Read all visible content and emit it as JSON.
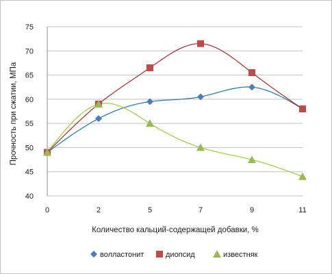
{
  "chart_data": {
    "type": "scatter",
    "xlabel": "Количество кальций-содержащей добавки, %",
    "ylabel": "Прочность при сжатии, МПа",
    "x_categories": [
      "0",
      "2",
      "5",
      "7",
      "9",
      "11"
    ],
    "ylim": [
      40,
      75
    ],
    "y_ticks": [
      40,
      45,
      50,
      55,
      60,
      65,
      70,
      75
    ],
    "grid": "horizontal",
    "legend_position": "bottom",
    "trendlines": "polynomial",
    "series": [
      {
        "name": "волластонит",
        "marker": "diamond",
        "color": "#4a7ebb",
        "curve_color": "#1f77a4",
        "values": [
          49,
          56,
          59.5,
          60.5,
          62.5,
          58
        ]
      },
      {
        "name": "диопсид",
        "marker": "square",
        "color": "#be4b48",
        "curve_color": "#a52a2a",
        "values": [
          49,
          59,
          66.5,
          71.5,
          65.5,
          58
        ]
      },
      {
        "name": "известняк",
        "marker": "triangle",
        "color": "#98b954",
        "curve_color": "#9acd32",
        "values": [
          49,
          59,
          55,
          50,
          47.5,
          44
        ]
      }
    ]
  }
}
